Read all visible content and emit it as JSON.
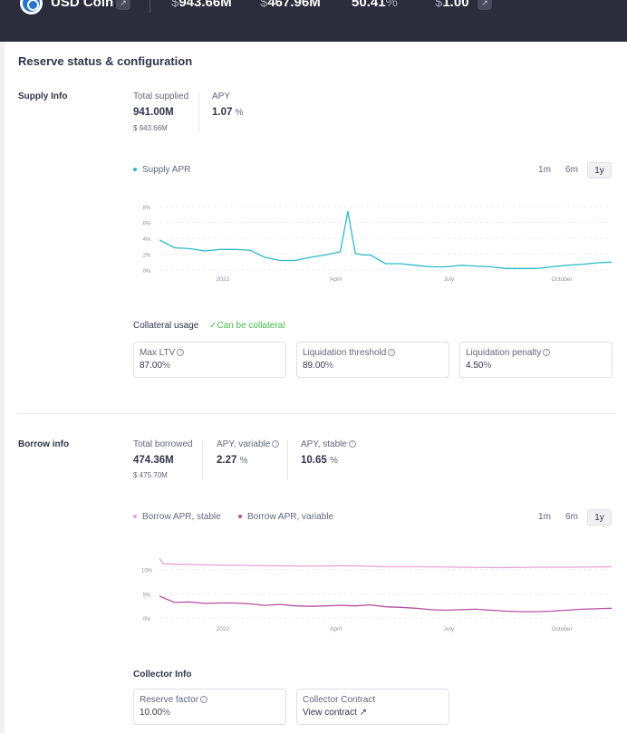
{
  "header": {
    "asset_name": "USD Coin",
    "stats": [
      {
        "symbol": "$",
        "value": "943.66M"
      },
      {
        "symbol": "$",
        "value": "467.96M"
      },
      {
        "symbol": "",
        "value": "50.41",
        "suffix": "%"
      },
      {
        "symbol": "$",
        "value": "1.00"
      }
    ],
    "background": "#2b2d3c"
  },
  "card_title": "Reserve status & configuration",
  "supply": {
    "section_label": "Supply Info",
    "total_supplied_label": "Total supplied",
    "total_supplied": "941.00M",
    "total_supplied_usd": "$ 943.66M",
    "apy_label": "APY",
    "apy": "1.07",
    "pct": "%",
    "legend": "Supply APR",
    "ranges": [
      "1m",
      "6m",
      "1y"
    ],
    "active_range": "1y",
    "collateral_label": "Collateral usage",
    "collateral_status": "Can be collateral",
    "boxes": [
      {
        "label": "Max LTV",
        "value": "87.00",
        "pct": "%"
      },
      {
        "label": "Liquidation threshold",
        "value": "89.00",
        "pct": "%"
      },
      {
        "label": "Liquidation penalty",
        "value": "4.50",
        "pct": "%"
      }
    ]
  },
  "borrow": {
    "section_label": "Borrow info",
    "total_borrowed_label": "Total borrowed",
    "total_borrowed": "474.36M",
    "total_borrowed_usd": "$ 475.70M",
    "apy_variable_label": "APY, variable",
    "apy_variable": "2.27",
    "apy_stable_label": "APY, stable",
    "apy_stable": "10.65",
    "pct": "%",
    "legend_stable": "Borrow APR, stable",
    "legend_variable": "Borrow APR, variable",
    "ranges": [
      "1m",
      "6m",
      "1y"
    ],
    "active_range": "1y"
  },
  "collector": {
    "section_label": "Collector Info",
    "reserve_factor_label": "Reserve factor",
    "reserve_factor": "10.00",
    "pct": "%",
    "contract_label": "Collector Contract",
    "contract_link": "View contract"
  },
  "chart_data": [
    {
      "type": "line",
      "x_ticks": [
        "2022",
        "April",
        "July",
        "October"
      ],
      "y_ticks": [
        "8%",
        "6%",
        "4%",
        "2%",
        "0%"
      ],
      "ylim": [
        0,
        8
      ],
      "series": [
        {
          "name": "Supply APR",
          "color": "#2ebac6",
          "x": [
            0,
            0.4,
            0.8,
            1.2,
            1.6,
            2,
            2.4,
            2.8,
            3.2,
            3.6,
            4,
            4.4,
            4.8,
            5,
            5.2,
            5.4,
            5.6,
            6,
            6.4,
            6.8,
            7.2,
            7.6,
            8,
            8.4,
            8.8,
            9.2,
            9.6,
            10,
            10.4,
            10.8,
            11.2,
            11.6,
            12
          ],
          "y": [
            3.8,
            2.8,
            2.7,
            2.4,
            2.6,
            2.6,
            2.5,
            1.6,
            1.2,
            1.2,
            1.6,
            1.9,
            2.3,
            7.4,
            2.1,
            1.9,
            1.9,
            0.8,
            0.8,
            0.6,
            0.4,
            0.4,
            0.6,
            0.5,
            0.4,
            0.2,
            0.2,
            0.2,
            0.4,
            0.6,
            0.7,
            0.9,
            1.0
          ]
        }
      ]
    },
    {
      "type": "line",
      "x_ticks": [
        "2022",
        "April",
        "July",
        "October"
      ],
      "y_ticks": [
        "10%",
        "5%",
        "0%"
      ],
      "ylim": [
        0,
        12
      ],
      "series": [
        {
          "name": "Borrow APR, stable",
          "color": "#e6a3d6",
          "x": [
            0,
            0.1,
            1,
            2,
            3,
            4,
            5,
            6,
            7,
            8,
            9,
            10,
            11,
            12
          ],
          "y": [
            12.3,
            11.2,
            11.0,
            10.9,
            10.8,
            10.7,
            10.8,
            10.6,
            10.6,
            10.5,
            10.4,
            10.5,
            10.5,
            10.6
          ]
        },
        {
          "name": "Borrow APR, variable",
          "color": "#b6509e",
          "x": [
            0,
            0.4,
            0.8,
            1.2,
            1.6,
            2,
            2.4,
            2.8,
            3.2,
            3.6,
            4,
            4.4,
            4.8,
            5.2,
            5.6,
            6,
            6.4,
            6.8,
            7.2,
            7.6,
            8,
            8.4,
            8.8,
            9.2,
            9.6,
            10,
            10.4,
            10.8,
            11.2,
            11.6,
            12
          ],
          "y": [
            4.5,
            3.2,
            3.3,
            3.0,
            3.1,
            3.1,
            2.9,
            2.6,
            2.8,
            2.5,
            2.4,
            2.5,
            2.6,
            2.5,
            2.7,
            2.3,
            2.2,
            2.0,
            1.7,
            1.6,
            1.7,
            1.8,
            1.6,
            1.4,
            1.3,
            1.3,
            1.4,
            1.6,
            1.8,
            1.9,
            2.0
          ]
        }
      ]
    }
  ]
}
